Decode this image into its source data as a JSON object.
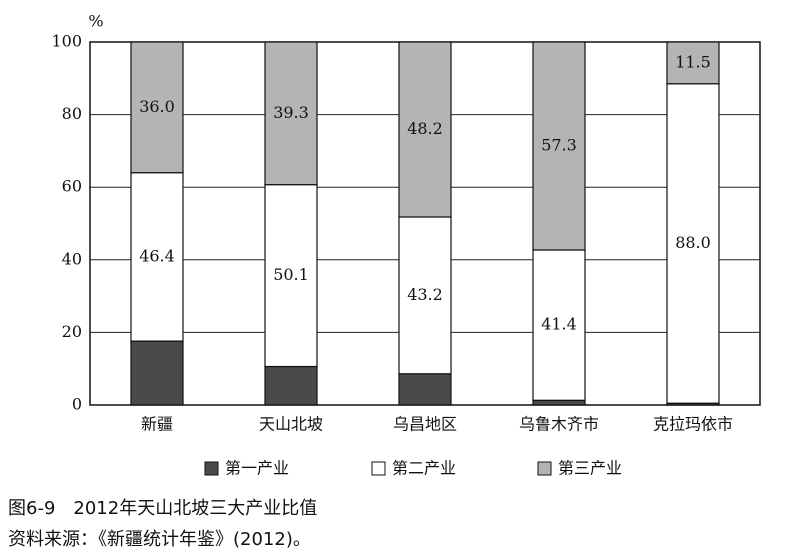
{
  "chart_data": {
    "type": "stacked_bar",
    "title": "图6-9　2012年天山北坡三大产业比值",
    "source": "资料来源：《新疆统计年鉴》(2012)。",
    "y_label": "%",
    "categories": [
      "新疆",
      "天山北坡",
      "乌昌地区",
      "乌鲁木齐市",
      "克拉玛依市"
    ],
    "series": [
      {
        "name": "第一产业",
        "color": "#4a4a4a",
        "values": [
          17.6,
          10.6,
          8.6,
          1.3,
          0.5
        ]
      },
      {
        "name": "第二产业",
        "color": "#ffffff",
        "values": [
          46.4,
          50.1,
          43.2,
          41.4,
          88.0
        ],
        "value_labels": [
          "46.4",
          "50.1",
          "43.2",
          "41.4",
          "88.0"
        ]
      },
      {
        "name": "第三产业",
        "color": "#b4b4b4",
        "values": [
          36.0,
          39.3,
          48.2,
          57.3,
          11.5
        ],
        "value_labels": [
          "36.0",
          "39.3",
          "48.2",
          "57.3",
          "11.5"
        ]
      }
    ],
    "ylim": [
      0,
      100
    ],
    "yticks": [
      0,
      20,
      40,
      60,
      80,
      100
    ],
    "grid": true,
    "legend": "bottom"
  }
}
